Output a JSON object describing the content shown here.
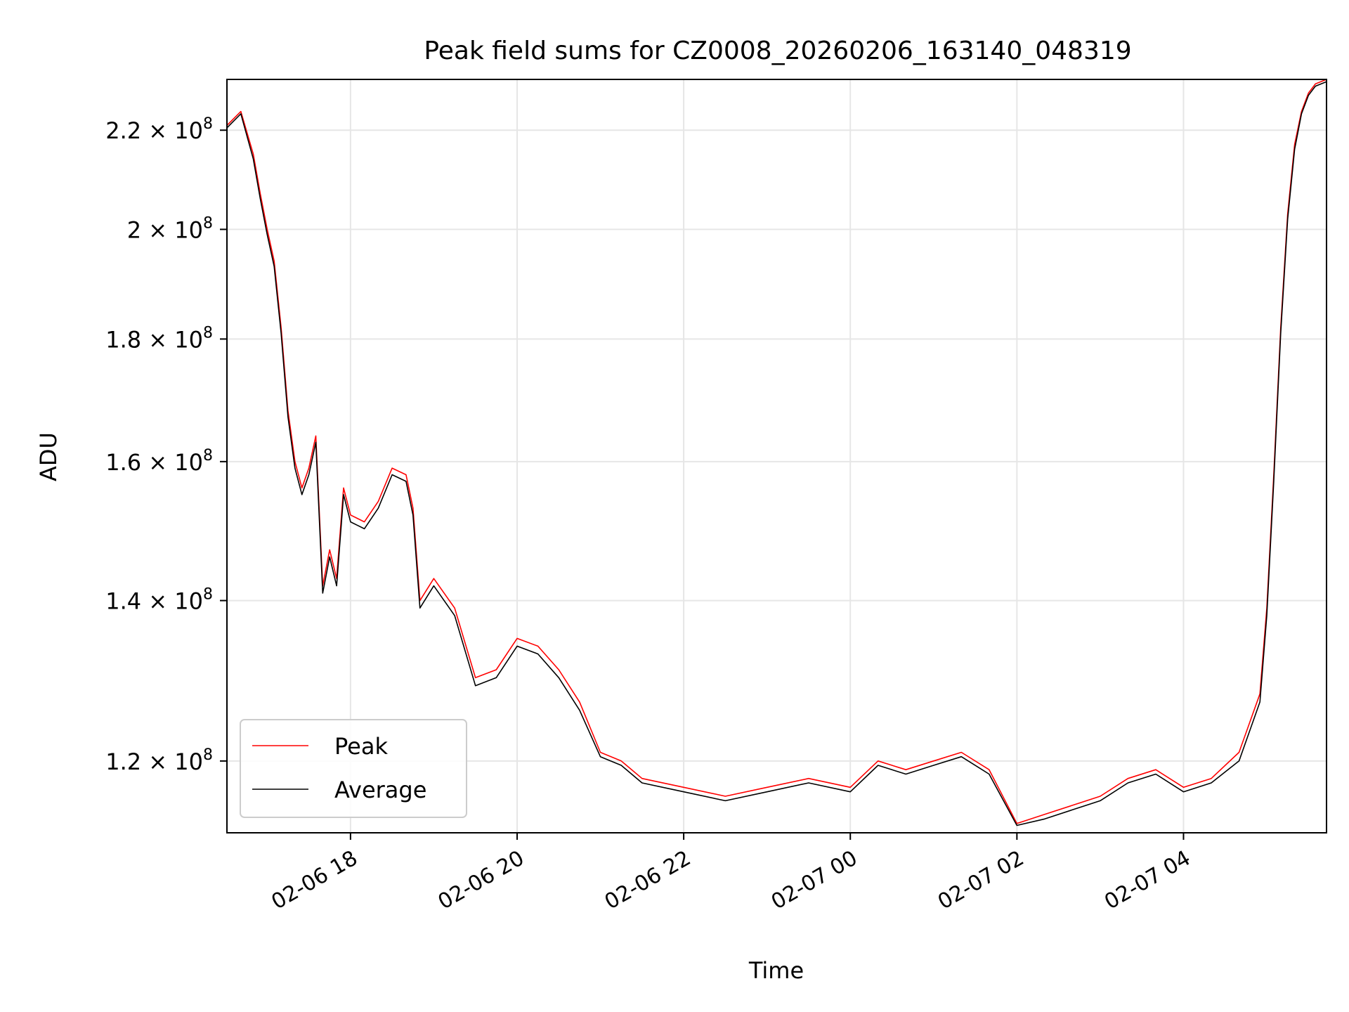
{
  "chart_data": {
    "type": "line",
    "title": "Peak field sums for CZ0008_20260206_163140_048319",
    "xlabel": "Time",
    "ylabel": "ADU",
    "y_scale": "log",
    "grid": true,
    "legend_position": "lower left",
    "xlim": [
      "2026-02-06 16:31",
      "2026-02-07 05:43"
    ],
    "ylim": [
      112000000,
      231000000
    ],
    "x_ticks": [
      {
        "value": "2026-02-06 18:00",
        "label": "02-06 18"
      },
      {
        "value": "2026-02-06 20:00",
        "label": "02-06 20"
      },
      {
        "value": "2026-02-06 22:00",
        "label": "02-06 22"
      },
      {
        "value": "2026-02-07 00:00",
        "label": "02-07 00"
      },
      {
        "value": "2026-02-07 02:00",
        "label": "02-07 02"
      },
      {
        "value": "2026-02-07 04:00",
        "label": "02-07 04"
      }
    ],
    "y_ticks": [
      {
        "value": 120000000,
        "mantissa": "1.2",
        "exponent": "8"
      },
      {
        "value": 140000000,
        "mantissa": "1.4",
        "exponent": "8"
      },
      {
        "value": 160000000,
        "mantissa": "1.6",
        "exponent": "8"
      },
      {
        "value": 180000000,
        "mantissa": "1.8",
        "exponent": "8"
      },
      {
        "value": 200000000,
        "mantissa": "2",
        "exponent": "8"
      },
      {
        "value": 220000000,
        "mantissa": "2.2",
        "exponent": "8"
      }
    ],
    "series": [
      {
        "name": "Peak",
        "color": "#ff0000",
        "x": [
          "2026-02-06 16:31",
          "2026-02-06 16:41",
          "2026-02-06 16:50",
          "2026-02-06 16:55",
          "2026-02-06 17:00",
          "2026-02-06 17:05",
          "2026-02-06 17:10",
          "2026-02-06 17:15",
          "2026-02-06 17:20",
          "2026-02-06 17:25",
          "2026-02-06 17:30",
          "2026-02-06 17:35",
          "2026-02-06 17:40",
          "2026-02-06 17:45",
          "2026-02-06 17:50",
          "2026-02-06 17:55",
          "2026-02-06 18:00",
          "2026-02-06 18:10",
          "2026-02-06 18:20",
          "2026-02-06 18:30",
          "2026-02-06 18:40",
          "2026-02-06 18:45",
          "2026-02-06 18:50",
          "2026-02-06 19:00",
          "2026-02-06 19:15",
          "2026-02-06 19:30",
          "2026-02-06 19:45",
          "2026-02-06 20:00",
          "2026-02-06 20:15",
          "2026-02-06 20:30",
          "2026-02-06 20:45",
          "2026-02-06 21:00",
          "2026-02-06 21:15",
          "2026-02-06 21:30",
          "2026-02-06 22:00",
          "2026-02-06 22:30",
          "2026-02-06 23:00",
          "2026-02-06 23:30",
          "2026-02-07 00:00",
          "2026-02-07 00:20",
          "2026-02-07 00:40",
          "2026-02-07 01:00",
          "2026-02-07 01:20",
          "2026-02-07 01:40",
          "2026-02-07 02:00",
          "2026-02-07 02:20",
          "2026-02-07 02:40",
          "2026-02-07 03:00",
          "2026-02-07 03:20",
          "2026-02-07 03:40",
          "2026-02-07 04:00",
          "2026-02-07 04:20",
          "2026-02-07 04:40",
          "2026-02-07 04:55",
          "2026-02-07 05:00",
          "2026-02-07 05:05",
          "2026-02-07 05:10",
          "2026-02-07 05:15",
          "2026-02-07 05:20",
          "2026-02-07 05:25",
          "2026-02-07 05:30",
          "2026-02-07 05:35",
          "2026-02-07 05:43"
        ],
        "values": [
          221000000,
          224000000,
          215000000,
          207000000,
          200000000,
          194000000,
          182000000,
          168000000,
          160000000,
          156000000,
          159000000,
          164000000,
          142000000,
          147000000,
          143000000,
          156000000,
          152000000,
          151000000,
          154000000,
          159000000,
          158000000,
          153000000,
          140000000,
          143000000,
          139000000,
          130000000,
          131000000,
          135000000,
          134000000,
          131000000,
          127000000,
          121000000,
          120000000,
          118000000,
          117000000,
          116000000,
          117000000,
          118000000,
          117000000,
          120000000,
          119000000,
          120000000,
          121000000,
          119000000,
          113000000,
          114000000,
          115000000,
          116000000,
          118000000,
          119000000,
          117000000,
          118000000,
          121000000,
          128000000,
          139000000,
          158000000,
          182000000,
          203000000,
          217000000,
          224000000,
          228000000,
          230000000,
          231000000
        ]
      },
      {
        "name": "Average",
        "color": "#000000",
        "x": [
          "2026-02-06 16:31",
          "2026-02-06 16:41",
          "2026-02-06 16:50",
          "2026-02-06 16:55",
          "2026-02-06 17:00",
          "2026-02-06 17:05",
          "2026-02-06 17:10",
          "2026-02-06 17:15",
          "2026-02-06 17:20",
          "2026-02-06 17:25",
          "2026-02-06 17:30",
          "2026-02-06 17:35",
          "2026-02-06 17:40",
          "2026-02-06 17:45",
          "2026-02-06 17:50",
          "2026-02-06 17:55",
          "2026-02-06 18:00",
          "2026-02-06 18:10",
          "2026-02-06 18:20",
          "2026-02-06 18:30",
          "2026-02-06 18:40",
          "2026-02-06 18:45",
          "2026-02-06 18:50",
          "2026-02-06 19:00",
          "2026-02-06 19:15",
          "2026-02-06 19:30",
          "2026-02-06 19:45",
          "2026-02-06 20:00",
          "2026-02-06 20:15",
          "2026-02-06 20:30",
          "2026-02-06 20:45",
          "2026-02-06 21:00",
          "2026-02-06 21:15",
          "2026-02-06 21:30",
          "2026-02-06 22:00",
          "2026-02-06 22:30",
          "2026-02-06 23:00",
          "2026-02-06 23:30",
          "2026-02-07 00:00",
          "2026-02-07 00:20",
          "2026-02-07 00:40",
          "2026-02-07 01:00",
          "2026-02-07 01:20",
          "2026-02-07 01:40",
          "2026-02-07 02:00",
          "2026-02-07 02:20",
          "2026-02-07 02:40",
          "2026-02-07 03:00",
          "2026-02-07 03:20",
          "2026-02-07 03:40",
          "2026-02-07 04:00",
          "2026-02-07 04:20",
          "2026-02-07 04:40",
          "2026-02-07 04:55",
          "2026-02-07 05:00",
          "2026-02-07 05:05",
          "2026-02-07 05:10",
          "2026-02-07 05:15",
          "2026-02-07 05:20",
          "2026-02-07 05:25",
          "2026-02-07 05:30",
          "2026-02-07 05:35",
          "2026-02-07 05:43"
        ],
        "values": [
          220500000,
          223500000,
          214000000,
          206000000,
          199000000,
          193000000,
          181000000,
          167000000,
          159000000,
          155000000,
          158000000,
          163000000,
          141000000,
          146000000,
          142000000,
          155000000,
          151000000,
          150000000,
          153000000,
          158000000,
          157000000,
          152000000,
          139000000,
          142000000,
          138000000,
          129000000,
          130000000,
          134000000,
          133000000,
          130000000,
          126000000,
          120500000,
          119500000,
          117500000,
          116500000,
          115500000,
          116500000,
          117500000,
          116500000,
          119500000,
          118500000,
          119500000,
          120500000,
          118500000,
          112800000,
          113500000,
          114500000,
          115500000,
          117500000,
          118500000,
          116500000,
          117500000,
          120000000,
          127000000,
          138000000,
          157000000,
          181000000,
          202000000,
          216000000,
          223500000,
          227500000,
          229500000,
          230500000
        ]
      }
    ]
  }
}
